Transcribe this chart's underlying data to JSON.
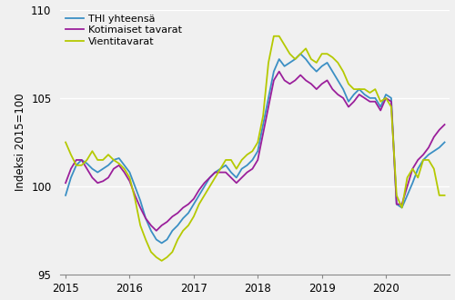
{
  "ylabel": "Indeksi 2015=100",
  "ylim": [
    95,
    110
  ],
  "yticks": [
    95,
    100,
    105,
    110
  ],
  "xtick_positions": [
    0,
    12,
    24,
    36,
    48,
    60
  ],
  "xtick_labels": [
    "2015",
    "2016",
    "2017",
    "2018",
    "2019",
    "2020"
  ],
  "colors": {
    "thi": "#3b8fc4",
    "kotimaiset": "#9b1f9b",
    "vientitavarat": "#b5c900"
  },
  "legend_labels": [
    "THI yhteensä",
    "Kotimaiset tavarat",
    "Vientitavarat"
  ],
  "linewidth": 1.3,
  "thi": [
    99.5,
    100.5,
    101.2,
    101.5,
    101.3,
    101.0,
    100.8,
    101.0,
    101.2,
    101.5,
    101.6,
    101.2,
    100.8,
    100.0,
    99.2,
    98.2,
    97.5,
    97.0,
    96.8,
    97.0,
    97.5,
    97.8,
    98.2,
    98.5,
    99.0,
    99.5,
    100.0,
    100.5,
    100.8,
    101.0,
    101.2,
    100.8,
    100.5,
    101.0,
    101.2,
    101.5,
    102.0,
    103.5,
    105.0,
    106.5,
    107.2,
    106.8,
    107.0,
    107.2,
    107.5,
    107.2,
    106.8,
    106.5,
    106.8,
    107.0,
    106.5,
    106.0,
    105.5,
    104.8,
    105.2,
    105.5,
    105.2,
    105.0,
    105.0,
    104.5,
    105.2,
    105.0,
    99.0,
    98.8,
    99.5,
    100.2,
    101.0,
    101.5,
    101.8,
    102.0,
    102.2,
    102.5
  ],
  "kotimaiset": [
    100.2,
    101.0,
    101.5,
    101.5,
    101.0,
    100.5,
    100.2,
    100.3,
    100.5,
    101.0,
    101.2,
    100.8,
    100.3,
    99.5,
    98.8,
    98.2,
    97.8,
    97.5,
    97.8,
    98.0,
    98.3,
    98.5,
    98.8,
    99.0,
    99.3,
    99.8,
    100.2,
    100.5,
    100.8,
    100.8,
    100.8,
    100.5,
    100.2,
    100.5,
    100.8,
    101.0,
    101.5,
    103.0,
    104.5,
    106.0,
    106.5,
    106.0,
    105.8,
    106.0,
    106.3,
    106.0,
    105.8,
    105.5,
    105.8,
    106.0,
    105.5,
    105.2,
    105.0,
    104.5,
    104.8,
    105.2,
    105.0,
    104.8,
    104.8,
    104.3,
    105.0,
    104.8,
    99.0,
    99.0,
    100.0,
    101.0,
    101.5,
    101.8,
    102.2,
    102.8,
    103.2,
    103.5
  ],
  "vientitavarat": [
    102.5,
    101.8,
    101.2,
    101.2,
    101.5,
    102.0,
    101.5,
    101.5,
    101.8,
    101.5,
    101.3,
    101.0,
    100.5,
    99.3,
    97.8,
    97.0,
    96.3,
    96.0,
    95.8,
    96.0,
    96.3,
    97.0,
    97.5,
    97.8,
    98.3,
    99.0,
    99.5,
    100.0,
    100.5,
    101.0,
    101.5,
    101.5,
    101.0,
    101.5,
    101.8,
    102.0,
    102.5,
    104.0,
    107.0,
    108.5,
    108.5,
    108.0,
    107.5,
    107.2,
    107.5,
    107.8,
    107.2,
    107.0,
    107.5,
    107.5,
    107.3,
    107.0,
    106.5,
    105.8,
    105.5,
    105.5,
    105.5,
    105.3,
    105.5,
    104.8,
    105.0,
    104.5,
    99.5,
    98.8,
    100.5,
    101.0,
    100.5,
    101.5,
    101.5,
    101.0,
    99.5,
    99.5
  ],
  "bg_color": "#f0f0f0",
  "grid_color": "#ffffff",
  "grid_linewidth": 1.0
}
